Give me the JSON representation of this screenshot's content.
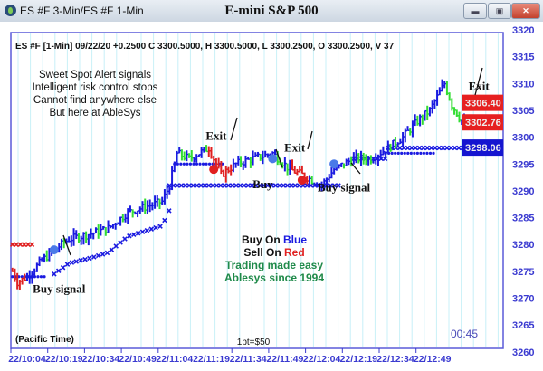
{
  "window": {
    "title": "ES #F 3-Min/ES #F 1-Min",
    "chart_title": "E-mini S&P 500",
    "min": "▬",
    "max": "▣",
    "close": "✕"
  },
  "chart_data": {
    "type": "bar",
    "title": "E-mini S&P 500",
    "info": "ES #F [1-Min] 09/22/20  +0.2500 C 3300.5000, H 3300.5000, L 3300.2500, O 3300.2500, V 37",
    "ylim": [
      3260,
      3320
    ],
    "yticks": [
      3260,
      3265,
      3270,
      3275,
      3280,
      3285,
      3290,
      3295,
      3300,
      3305,
      3310,
      3315,
      3320
    ],
    "xticks": [
      "22/10:04",
      "22/10:19",
      "22/10:34",
      "22/10:49",
      "22/11:04",
      "22/11:19",
      "22/11:34",
      "22/11:49",
      "22/12:04",
      "22/12:19",
      "22/12:34",
      "22/12:49"
    ],
    "price_path": [
      [
        "09:58",
        3275
      ],
      [
        "10:00",
        3273
      ],
      [
        "10:04",
        3274
      ],
      [
        "10:10",
        3277
      ],
      [
        "10:15",
        3279
      ],
      [
        "10:21",
        3281
      ],
      [
        "10:30",
        3282
      ],
      [
        "10:37",
        3283
      ],
      [
        "10:45",
        3286
      ],
      [
        "10:52",
        3287
      ],
      [
        "10:59",
        3288
      ],
      [
        "11:02",
        3291
      ],
      [
        "11:05",
        3297
      ],
      [
        "11:10",
        3296
      ],
      [
        "11:18",
        3298
      ],
      [
        "11:23",
        3293
      ],
      [
        "11:29",
        3295
      ],
      [
        "11:36",
        3296
      ],
      [
        "11:44",
        3297
      ],
      [
        "11:51",
        3294
      ],
      [
        "11:56",
        3293
      ],
      [
        "12:04",
        3291
      ],
      [
        "12:09",
        3294
      ],
      [
        "12:17",
        3296
      ],
      [
        "12:24",
        3296
      ],
      [
        "12:31",
        3298
      ],
      [
        "12:37",
        3300
      ],
      [
        "12:43",
        3303
      ],
      [
        "12:48",
        3305
      ],
      [
        "12:54",
        3310
      ],
      [
        "12:57",
        3306
      ],
      [
        "13:01",
        3303
      ],
      [
        "13:05",
        3302
      ],
      [
        "13:08",
        3302.5
      ]
    ],
    "sell_ranges": [
      [
        "09:58",
        "10:03"
      ],
      [
        "11:18",
        "11:27"
      ],
      [
        "11:52",
        "11:58"
      ],
      [
        "13:04",
        "13:08"
      ]
    ],
    "buy_markers": [
      [
        "10:15",
        3279
      ],
      [
        "11:44",
        3296
      ],
      [
        "12:09",
        3295
      ]
    ],
    "exit_markers": [
      [
        "11:20",
        3294
      ],
      [
        "11:56",
        3292
      ],
      [
        "13:07",
        3302.5
      ]
    ],
    "stop_lines": [
      {
        "color": "#e02020",
        "price": 3280,
        "from": "09:58",
        "to": "10:06"
      },
      {
        "color": "#1a1ae0",
        "price": 3291,
        "from": "11:02",
        "to": "12:12"
      },
      {
        "color": "#1a1ae0",
        "price": 3296,
        "from": "12:17",
        "to": "12:30"
      },
      {
        "color": "#1a1ae0",
        "price": 3298,
        "from": "12:31",
        "to": "13:12"
      }
    ],
    "price_labels": [
      {
        "value": "3306.40",
        "color": "#e62020"
      },
      {
        "value": "3302.76",
        "color": "#e62020"
      },
      {
        "value": "3298.06",
        "color": "#1515d0"
      }
    ],
    "colors": {
      "up": "#1a1ae0",
      "pullback": "#33dd33",
      "sell": "#e02020",
      "grid": "#c8f0f8",
      "axis": "#3a3ad0"
    }
  },
  "annotations": {
    "promo": [
      "Sweet Spot Alert signals",
      "Intelligent risk control stops",
      "Cannot find anywhere else",
      "But here at AbleSys"
    ],
    "buy_on": "Buy On ",
    "blue": "Blue",
    "sell_on": "Sell On ",
    "red": "Red",
    "easy": "Trading made easy",
    "since": "Ablesys since 1994",
    "labels": [
      {
        "text": "Buy signal",
        "t": "10:17",
        "p": 3271
      },
      {
        "text": "Exit",
        "t": "11:21",
        "p": 3299.5
      },
      {
        "text": "Buy",
        "t": "11:40",
        "p": 3290.5
      },
      {
        "text": "Exit",
        "t": "11:53",
        "p": 3297.3
      },
      {
        "text": "Buy signal",
        "t": "12:13",
        "p": 3289.9
      },
      {
        "text": "Exit",
        "t": "13:08",
        "p": 3308.8
      }
    ],
    "timezone": "(Pacific Time)",
    "point_value": "1pt=$50",
    "countdown": "00:45"
  }
}
